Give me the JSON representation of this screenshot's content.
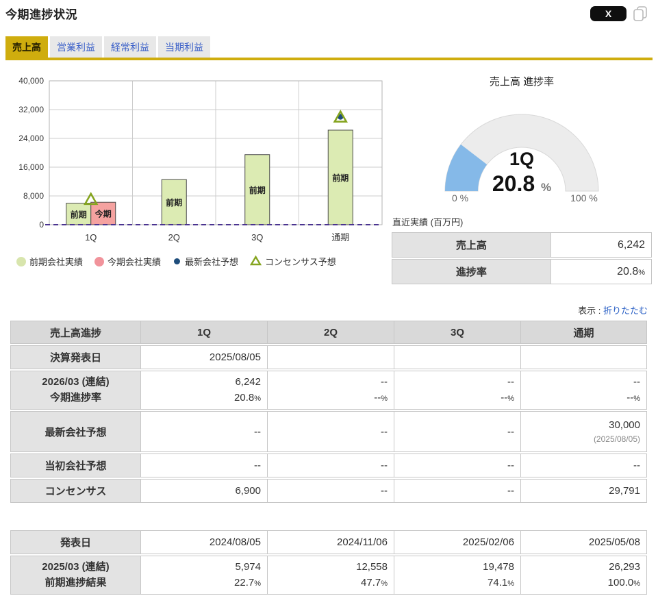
{
  "header": {
    "title": "今期進捗状況",
    "share_label": "X"
  },
  "tabs": [
    {
      "label": "売上高",
      "active": true
    },
    {
      "label": "営業利益",
      "active": false
    },
    {
      "label": "経常利益",
      "active": false
    },
    {
      "label": "当期利益",
      "active": false
    }
  ],
  "colors": {
    "accent_gold": "#cfad0e",
    "tab_link_blue": "#3a5fc8",
    "link_blue": "#2d62c6",
    "prev_bar": "#dcebb3",
    "curr_bar": "#f5a2a0",
    "latest_dot": "#1e4d7b",
    "consensus_triangle": "#85a41f",
    "zero_line": "#4a3390",
    "gauge_fill": "#85b9e8",
    "gauge_track": "#ececec"
  },
  "chart_data": [
    {
      "type": "bar",
      "title": "",
      "categories": [
        "1Q",
        "2Q",
        "3Q",
        "通期"
      ],
      "series": [
        {
          "name": "前期会社実績",
          "kind": "bar",
          "bar_label": "前期",
          "color": "#dcebb3",
          "border": "#4a4a4a",
          "values": [
            5974,
            12558,
            19478,
            26293
          ]
        },
        {
          "name": "今期会社実績",
          "kind": "bar",
          "bar_label": "今期",
          "color": "#f5a2a0",
          "border": "#4a4a4a",
          "values": [
            6242,
            null,
            null,
            null
          ]
        },
        {
          "name": "最新会社予想",
          "kind": "point",
          "color": "#1e4d7b",
          "values": [
            null,
            null,
            null,
            30000
          ]
        },
        {
          "name": "コンセンサス予想",
          "kind": "triangle",
          "color": "#85a41f",
          "values": [
            6900,
            null,
            null,
            29791
          ]
        }
      ],
      "xlabel": "",
      "ylabel": "",
      "ylim": [
        0,
        40000
      ],
      "ytick": 8000,
      "grid": true,
      "legend_position": "bottom"
    },
    {
      "type": "gauge",
      "title": "売上高 進捗率",
      "period_label": "1Q",
      "percent": 20.8,
      "percent_display": "20.8",
      "unit": "%",
      "min_label": "0 %",
      "max_label": "100 %"
    }
  ],
  "gauge": {
    "title": "売上高 進捗率"
  },
  "recent": {
    "title": "直近実績 (百万円)",
    "rows": [
      {
        "label": "売上高",
        "value": "6,242",
        "unit": ""
      },
      {
        "label": "進捗率",
        "value": "20.8",
        "unit": "%"
      }
    ]
  },
  "toggle": {
    "prefix": "表示 : ",
    "link": "折りたたむ"
  },
  "units": {
    "percent": "%"
  },
  "progress_table": {
    "headers": [
      "売上高進捗",
      "1Q",
      "2Q",
      "3Q",
      "通期"
    ],
    "announce_row": {
      "label": "決算発表日",
      "cells": [
        "2025/08/05",
        "",
        "",
        ""
      ]
    },
    "current_row": {
      "label_line1": "2026/03 (連結)",
      "label_line2": "今期進捗率",
      "cells": [
        {
          "v": "6,242",
          "p": "20.8"
        },
        {
          "v": "--",
          "p": "--"
        },
        {
          "v": "--",
          "p": "--"
        },
        {
          "v": "--",
          "p": "--"
        }
      ]
    },
    "latest_row": {
      "label": "最新会社予想",
      "cells": [
        "--",
        "--",
        "--"
      ],
      "last_value": "30,000",
      "last_note": "(2025/08/05)"
    },
    "initial_row": {
      "label": "当初会社予想",
      "cells": [
        "--",
        "--",
        "--",
        "--"
      ]
    },
    "consensus_row": {
      "label": "コンセンサス",
      "cells": [
        "6,900",
        "--",
        "--",
        "29,791"
      ]
    }
  },
  "prev_table": {
    "announce_row": {
      "label": "発表日",
      "cells": [
        "2024/08/05",
        "2024/11/06",
        "2025/02/06",
        "2025/05/08"
      ]
    },
    "result_row": {
      "label_line1": "2025/03 (連結)",
      "label_line2": "前期進捗結果",
      "cells": [
        {
          "v": "5,974",
          "p": "22.7"
        },
        {
          "v": "12,558",
          "p": "47.7"
        },
        {
          "v": "19,478",
          "p": "74.1"
        },
        {
          "v": "26,293",
          "p": "100.0"
        }
      ]
    }
  }
}
